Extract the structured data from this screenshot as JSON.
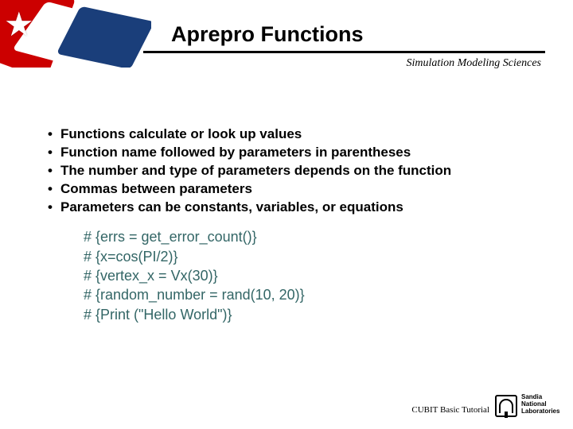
{
  "title": "Aprepro Functions",
  "subtitle": "Simulation Modeling Sciences",
  "bullets": [
    "Functions calculate or look up values",
    "Function name followed by parameters in parentheses",
    "The number and type of parameters depends on the function",
    "Commas between parameters",
    "Parameters can be constants, variables, or equations"
  ],
  "code_lines": [
    "# {errs = get_error_count()}",
    "# {x=cos(PI/2)}",
    "# {vertex_x = Vx(30)}",
    "# {random_number = rand(10, 20)}",
    "# {Print (\"Hello World\")}"
  ],
  "footer": "CUBIT Basic Tutorial",
  "logo_text": "Sandia\nNational\nLaboratories",
  "colors": {
    "code_color": "#336666",
    "red": "#cc0000",
    "blue": "#1a3e7a",
    "text": "#000000"
  }
}
